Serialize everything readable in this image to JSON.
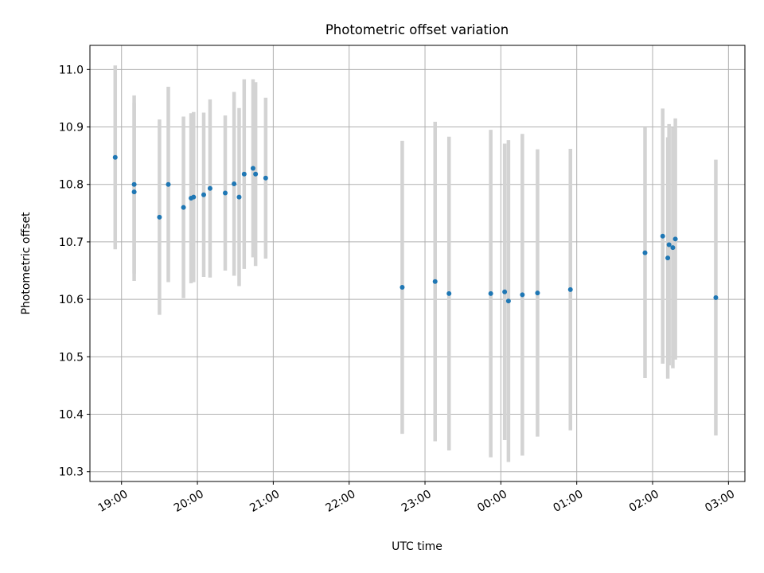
{
  "chart_data": {
    "type": "scatter",
    "title": "Photometric offset variation",
    "xlabel": "UTC time",
    "ylabel": "Photometric offset",
    "grid": true,
    "legend": "none",
    "x_tick_labels": [
      "19:00",
      "20:00",
      "21:00",
      "22:00",
      "23:00",
      "00:00",
      "01:00",
      "02:00",
      "03:00"
    ],
    "y_ticks": [
      10.3,
      10.4,
      10.5,
      10.6,
      10.7,
      10.8,
      10.9,
      11.0
    ],
    "y_tick_labels": [
      "10.3",
      "10.4",
      "10.5",
      "10.6",
      "10.7",
      "10.8",
      "10.9",
      "11.0"
    ],
    "xlim": [
      "18:35",
      "03:13"
    ],
    "ylim": [
      10.283,
      11.042
    ],
    "colors": {
      "points": "#1f77b4",
      "errorbars": "#d3d3d3",
      "grid": "#b0b0b0"
    },
    "series": [
      {
        "points": [
          {
            "time": "18:55",
            "y": 10.847,
            "err": 0.16
          },
          {
            "time": "19:10",
            "y": 10.8,
            "err": 0.155
          },
          {
            "time": "19:10",
            "y": 10.787,
            "err": 0.155
          },
          {
            "time": "19:30",
            "y": 10.743,
            "err": 0.17
          },
          {
            "time": "19:37",
            "y": 10.8,
            "err": 0.17
          },
          {
            "time": "19:49",
            "y": 10.76,
            "err": 0.158
          },
          {
            "time": "19:55",
            "y": 10.776,
            "err": 0.148
          },
          {
            "time": "19:57",
            "y": 10.778,
            "err": 0.148
          },
          {
            "time": "20:05",
            "y": 10.782,
            "err": 0.143
          },
          {
            "time": "20:10",
            "y": 10.793,
            "err": 0.155
          },
          {
            "time": "20:22",
            "y": 10.785,
            "err": 0.135
          },
          {
            "time": "20:29",
            "y": 10.801,
            "err": 0.16
          },
          {
            "time": "20:33",
            "y": 10.778,
            "err": 0.155
          },
          {
            "time": "20:37",
            "y": 10.818,
            "err": 0.165
          },
          {
            "time": "20:44",
            "y": 10.828,
            "err": 0.155
          },
          {
            "time": "20:46",
            "y": 10.818,
            "err": 0.16
          },
          {
            "time": "20:54",
            "y": 10.811,
            "err": 0.14
          },
          {
            "time": "22:42",
            "y": 10.621,
            "err": 0.255
          },
          {
            "time": "23:08",
            "y": 10.631,
            "err": 0.278
          },
          {
            "time": "23:19",
            "y": 10.61,
            "err": 0.273
          },
          {
            "time": "23:52",
            "y": 10.61,
            "err": 0.285
          },
          {
            "time": "00:03",
            "y": 10.613,
            "err": 0.258
          },
          {
            "time": "00:06",
            "y": 10.597,
            "err": 0.28
          },
          {
            "time": "00:17",
            "y": 10.608,
            "err": 0.28
          },
          {
            "time": "00:29",
            "y": 10.611,
            "err": 0.25
          },
          {
            "time": "00:55",
            "y": 10.617,
            "err": 0.245
          },
          {
            "time": "01:54",
            "y": 10.681,
            "err": 0.218
          },
          {
            "time": "02:08",
            "y": 10.71,
            "err": 0.222
          },
          {
            "time": "02:12",
            "y": 10.672,
            "err": 0.21
          },
          {
            "time": "02:13",
            "y": 10.695,
            "err": 0.21
          },
          {
            "time": "02:16",
            "y": 10.69,
            "err": 0.21
          },
          {
            "time": "02:18",
            "y": 10.705,
            "err": 0.21
          },
          {
            "time": "02:50",
            "y": 10.603,
            "err": 0.24
          }
        ]
      }
    ]
  }
}
